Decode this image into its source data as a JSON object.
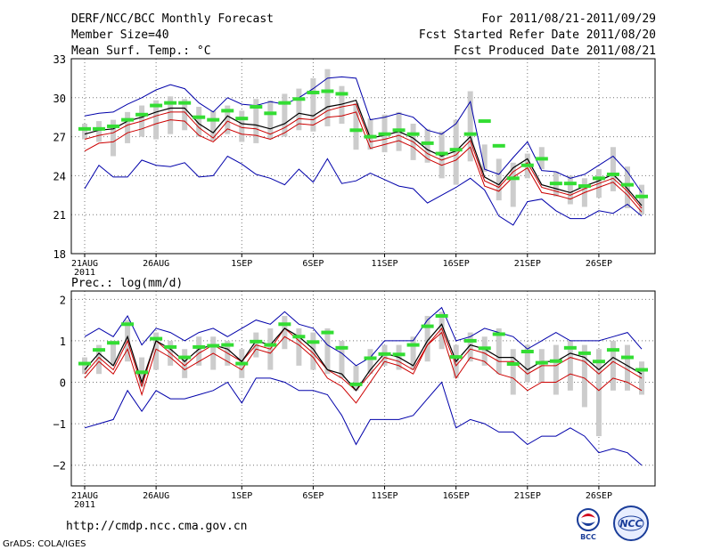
{
  "header": {
    "title": "DERF/NCC/BCC Monthly Forecast",
    "member_size": "Member Size=40",
    "variable": "Mean Surf. Temp.: °C",
    "period": "For 2011/08/21-2011/09/29",
    "refer_date": "Fcst Started Refer Date 2011/08/20",
    "produced_date": "Fcst Produced Date 2011/08/21"
  },
  "footer": {
    "url": "http://cmdp.ncc.cma.gov.cn",
    "credit": "GrADS: COLA/IGES",
    "logo_bcc": "BCC",
    "logo_ncc": "NCC"
  },
  "colors": {
    "ensemble_mean": "#000000",
    "control": "#cc0000",
    "envelope": "#0000aa",
    "box": "#cccccc",
    "median": "#33dd33",
    "grid": "#777777"
  },
  "chart_data": [
    {
      "type": "line",
      "title": "Mean Surf. Temp.: °C",
      "xlabel": "",
      "ylabel": "",
      "x_ticks": [
        "21AUG",
        "26AUG",
        "1SEP",
        "6SEP",
        "11SEP",
        "16SEP",
        "21SEP",
        "26SEP"
      ],
      "x_tick_days": [
        1,
        6,
        12,
        17,
        22,
        27,
        32,
        37
      ],
      "x_year_label": "2011",
      "ylim": [
        18,
        33
      ],
      "y_ticks": [
        "18",
        "21",
        "24",
        "27",
        "30",
        "33"
      ],
      "grid": true,
      "days": [
        1,
        2,
        3,
        4,
        5,
        6,
        7,
        8,
        9,
        10,
        11,
        12,
        13,
        14,
        15,
        16,
        17,
        18,
        19,
        20,
        21,
        22,
        23,
        24,
        25,
        26,
        27,
        28,
        29,
        30,
        31,
        32,
        33,
        34,
        35,
        36,
        37,
        38,
        39,
        40
      ],
      "series": [
        {
          "name": "max",
          "values": [
            28.6,
            28.8,
            28.9,
            29.5,
            30.0,
            30.6,
            31.0,
            30.7,
            29.6,
            28.9,
            30.0,
            29.5,
            29.4,
            29.7,
            29.5,
            30.0,
            30.7,
            31.5,
            31.6,
            31.5,
            28.3,
            28.5,
            28.8,
            28.5,
            27.5,
            27.2,
            28.0,
            29.7,
            24.5,
            24.1,
            25.4,
            26.6,
            24.4,
            24.3,
            23.8,
            24.1,
            24.8,
            25.5,
            24.3,
            22.7
          ]
        },
        {
          "name": "ensemble_mean",
          "values": [
            27.2,
            27.5,
            27.6,
            28.2,
            28.5,
            28.9,
            29.2,
            29.2,
            28.0,
            27.3,
            28.6,
            28.0,
            27.9,
            27.6,
            28.0,
            28.8,
            28.6,
            29.3,
            29.5,
            29.8,
            26.9,
            27.1,
            27.4,
            26.9,
            26.0,
            25.5,
            25.9,
            27.0,
            23.9,
            23.3,
            24.6,
            25.3,
            23.3,
            23.0,
            22.7,
            23.2,
            23.6,
            24.1,
            23.0,
            21.7
          ]
        },
        {
          "name": "control",
          "values": [
            26.8,
            27.1,
            27.3,
            27.9,
            28.2,
            28.6,
            28.9,
            28.9,
            27.7,
            26.9,
            28.2,
            27.7,
            27.6,
            27.2,
            27.7,
            28.4,
            28.3,
            29.0,
            29.3,
            29.5,
            26.6,
            26.8,
            27.1,
            26.6,
            25.7,
            25.2,
            25.6,
            26.7,
            23.6,
            23.1,
            24.3,
            25.0,
            23.1,
            22.8,
            22.5,
            23.0,
            23.4,
            23.8,
            22.8,
            21.5
          ]
        },
        {
          "name": "control_low",
          "values": [
            25.9,
            26.5,
            26.6,
            27.3,
            27.6,
            28.0,
            28.3,
            28.2,
            27.1,
            26.6,
            27.6,
            27.2,
            27.1,
            26.8,
            27.3,
            28.0,
            27.9,
            28.5,
            28.6,
            28.9,
            26.1,
            26.4,
            26.7,
            26.2,
            25.3,
            24.8,
            25.2,
            26.2,
            23.2,
            22.8,
            23.9,
            24.6,
            22.7,
            22.5,
            22.2,
            22.7,
            23.1,
            23.5,
            22.5,
            21.2
          ]
        },
        {
          "name": "min",
          "values": [
            23.0,
            24.8,
            23.9,
            23.9,
            25.2,
            24.8,
            24.7,
            25.0,
            23.9,
            24.0,
            25.5,
            24.9,
            24.1,
            23.8,
            23.3,
            24.5,
            23.5,
            25.3,
            23.4,
            23.6,
            24.2,
            23.7,
            23.2,
            23.0,
            21.9,
            22.5,
            23.1,
            23.8,
            22.9,
            20.9,
            20.2,
            22.0,
            22.2,
            21.3,
            20.7,
            20.7,
            21.3,
            21.1,
            21.8,
            20.9
          ]
        },
        {
          "name": "median",
          "values": [
            27.6,
            27.6,
            27.8,
            28.3,
            28.7,
            29.4,
            29.6,
            29.6,
            28.5,
            28.3,
            29.0,
            28.4,
            29.3,
            28.8,
            29.6,
            29.9,
            30.4,
            30.5,
            30.3,
            27.5,
            27.0,
            27.2,
            27.5,
            27.2,
            26.5,
            25.7,
            26.0,
            27.2,
            28.2,
            26.3,
            23.8,
            24.8,
            25.3,
            23.4,
            23.4,
            23.2,
            23.8,
            24.1,
            23.3,
            22.4
          ]
        },
        {
          "name": "box_low",
          "values": [
            26.8,
            26.6,
            25.5,
            26.5,
            27.0,
            26.8,
            27.2,
            27.5,
            27.0,
            26.7,
            27.2,
            26.6,
            26.5,
            26.8,
            27.0,
            27.5,
            27.4,
            27.8,
            28.0,
            26.0,
            26.0,
            25.8,
            25.9,
            25.2,
            25.0,
            23.8,
            23.3,
            25.1,
            24.3,
            22.1,
            21.6,
            23.8,
            24.5,
            22.4,
            21.8,
            21.6,
            22.3,
            22.8,
            21.5,
            21.0
          ]
        },
        {
          "name": "box_high",
          "values": [
            28.0,
            28.2,
            28.3,
            28.9,
            29.4,
            29.8,
            30.1,
            29.9,
            29.3,
            29.0,
            29.4,
            29.0,
            29.9,
            29.8,
            30.3,
            30.7,
            31.5,
            32.2,
            30.9,
            29.6,
            28.4,
            28.7,
            28.9,
            28.0,
            27.6,
            27.4,
            28.3,
            30.5,
            26.4,
            25.3,
            25.0,
            25.7,
            26.2,
            24.3,
            24.0,
            23.8,
            24.5,
            26.2,
            24.7,
            23.3
          ]
        }
      ]
    },
    {
      "type": "line",
      "title": "Prec.: log(mm/d)",
      "xlabel": "",
      "ylabel": "",
      "x_ticks": [
        "21AUG",
        "26AUG",
        "1SEP",
        "6SEP",
        "11SEP",
        "16SEP",
        "21SEP",
        "26SEP"
      ],
      "x_tick_days": [
        1,
        6,
        12,
        17,
        22,
        27,
        32,
        37
      ],
      "x_year_label": "2011",
      "ylim": [
        -2.5,
        2.2
      ],
      "y_ticks": [
        "2",
        "1",
        "0",
        "−1",
        "−2"
      ],
      "y_tick_values": [
        2,
        1,
        0,
        -1,
        -2
      ],
      "grid": true,
      "days": [
        1,
        2,
        3,
        4,
        5,
        6,
        7,
        8,
        9,
        10,
        11,
        12,
        13,
        14,
        15,
        16,
        17,
        18,
        19,
        20,
        21,
        22,
        23,
        24,
        25,
        26,
        27,
        28,
        29,
        30,
        31,
        32,
        33,
        34,
        35,
        36,
        37,
        38,
        39,
        40
      ],
      "series": [
        {
          "name": "max",
          "values": [
            1.1,
            1.3,
            1.1,
            1.6,
            0.9,
            1.3,
            1.2,
            1.0,
            1.2,
            1.3,
            1.1,
            1.3,
            1.5,
            1.4,
            1.7,
            1.4,
            1.3,
            0.9,
            0.7,
            0.4,
            0.6,
            1.0,
            1.0,
            1.0,
            1.5,
            1.8,
            1.0,
            1.1,
            1.3,
            1.2,
            1.1,
            0.8,
            1.0,
            1.2,
            1.0,
            1.0,
            1.0,
            1.1,
            1.2,
            0.8
          ]
        },
        {
          "name": "ensemble_mean",
          "values": [
            0.3,
            0.7,
            0.4,
            1.1,
            0.0,
            1.0,
            0.8,
            0.5,
            0.8,
            0.9,
            0.8,
            0.5,
            1.0,
            0.9,
            1.3,
            1.1,
            0.8,
            0.3,
            0.2,
            -0.2,
            0.3,
            0.7,
            0.6,
            0.4,
            1.0,
            1.4,
            0.5,
            0.9,
            0.8,
            0.6,
            0.6,
            0.3,
            0.5,
            0.5,
            0.7,
            0.6,
            0.3,
            0.6,
            0.4,
            0.2
          ]
        },
        {
          "name": "control",
          "values": [
            0.2,
            0.6,
            0.3,
            1.0,
            -0.1,
            1.0,
            0.7,
            0.4,
            0.7,
            0.9,
            0.7,
            0.5,
            0.9,
            0.8,
            1.3,
            1.0,
            0.7,
            0.3,
            0.1,
            -0.2,
            0.2,
            0.6,
            0.5,
            0.3,
            0.9,
            1.3,
            0.4,
            0.8,
            0.7,
            0.5,
            0.5,
            0.2,
            0.4,
            0.4,
            0.6,
            0.5,
            0.2,
            0.5,
            0.3,
            0.1
          ]
        },
        {
          "name": "control_low",
          "values": [
            0.1,
            0.5,
            0.2,
            0.8,
            -0.3,
            0.8,
            0.6,
            0.3,
            0.5,
            0.7,
            0.5,
            0.3,
            0.8,
            0.7,
            1.1,
            0.9,
            0.6,
            0.1,
            -0.1,
            -0.5,
            0.0,
            0.5,
            0.4,
            0.2,
            0.9,
            1.2,
            0.1,
            0.6,
            0.5,
            0.2,
            0.1,
            -0.2,
            0.0,
            0.0,
            0.2,
            0.1,
            -0.2,
            0.1,
            0.0,
            -0.2
          ]
        },
        {
          "name": "min",
          "values": [
            -1.1,
            -1.0,
            -0.9,
            -0.2,
            -0.7,
            -0.2,
            -0.4,
            -0.4,
            -0.3,
            -0.2,
            0.0,
            -0.5,
            0.1,
            0.1,
            0.0,
            -0.2,
            -0.2,
            -0.3,
            -0.8,
            -1.5,
            -0.9,
            -0.9,
            -0.9,
            -0.8,
            -0.4,
            0.0,
            -1.1,
            -0.9,
            -1.0,
            -1.2,
            -1.2,
            -1.5,
            -1.3,
            -1.3,
            -1.1,
            -1.3,
            -1.7,
            -1.6,
            -1.7,
            -2.0
          ]
        },
        {
          "name": "median",
          "values": [
            0.45,
            0.78,
            0.95,
            1.4,
            0.24,
            1.05,
            0.85,
            0.6,
            0.85,
            0.88,
            0.9,
            0.45,
            0.98,
            0.9,
            1.4,
            1.1,
            0.97,
            1.2,
            0.83,
            -0.05,
            0.58,
            0.68,
            0.67,
            0.9,
            1.35,
            1.6,
            0.61,
            1.0,
            0.82,
            1.16,
            0.44,
            0.74,
            0.47,
            0.51,
            0.83,
            0.7,
            0.5,
            0.78,
            0.6,
            0.3
          ]
        },
        {
          "name": "box_low",
          "values": [
            0.2,
            0.2,
            0.4,
            0.5,
            -0.1,
            0.3,
            0.4,
            0.1,
            0.4,
            0.3,
            0.4,
            0.1,
            0.6,
            0.3,
            0.8,
            0.4,
            0.3,
            0.2,
            0.1,
            -0.2,
            0.2,
            0.4,
            0.3,
            0.3,
            0.5,
            0.8,
            0.1,
            0.5,
            0.4,
            0.2,
            -0.3,
            0.0,
            0.0,
            -0.3,
            -0.2,
            -0.6,
            -1.3,
            -0.2,
            -0.2,
            -0.3
          ]
        },
        {
          "name": "box_high",
          "values": [
            0.6,
            0.9,
            1.0,
            1.5,
            0.6,
            1.2,
            1.0,
            0.8,
            1.1,
            1.1,
            1.0,
            0.8,
            1.2,
            1.3,
            1.6,
            1.3,
            1.2,
            1.3,
            1.0,
            0.4,
            0.8,
            0.9,
            0.9,
            1.1,
            1.6,
            1.7,
            0.9,
            1.2,
            1.1,
            1.3,
            0.8,
            0.9,
            0.8,
            0.9,
            1.0,
            0.9,
            0.8,
            1.0,
            0.9,
            0.5
          ]
        }
      ]
    }
  ]
}
